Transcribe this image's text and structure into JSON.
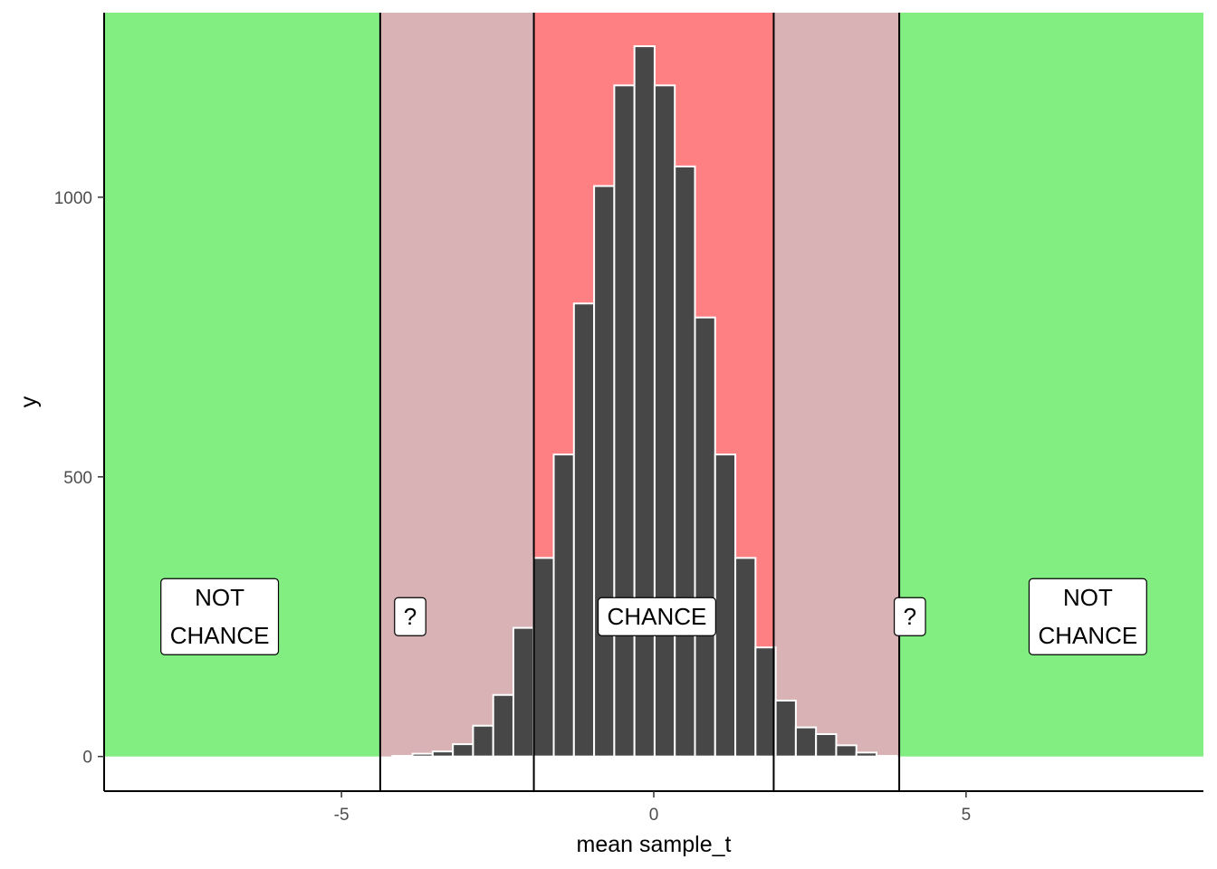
{
  "chart_data": {
    "type": "bar",
    "xlabel": "mean sample_t",
    "ylabel": "y",
    "xlim": [
      -8.8,
      8.8
    ],
    "ylim": [
      -62,
      1330
    ],
    "x_ticks": [
      -5,
      0,
      5
    ],
    "x_tick_labels": [
      "-5",
      "0",
      "5"
    ],
    "y_ticks": [
      0,
      500,
      1000
    ],
    "y_tick_labels": [
      "0",
      "500",
      "1000"
    ],
    "grid": false,
    "legend": "none",
    "regions": [
      {
        "from": -8.8,
        "to": -4.38,
        "color": "#82ee82"
      },
      {
        "from": -4.38,
        "to": -1.92,
        "color": "#d8b2b4"
      },
      {
        "from": -1.92,
        "to": 1.92,
        "color": "#ff8083"
      },
      {
        "from": 1.92,
        "to": 3.93,
        "color": "#d8b2b4"
      },
      {
        "from": 3.93,
        "to": 8.8,
        "color": "#82ee82"
      }
    ],
    "vlines": [
      -4.38,
      -1.92,
      1.92,
      3.93
    ],
    "annotations": [
      {
        "lines": [
          "NOT",
          "CHANCE"
        ],
        "x": -6.95,
        "y": 250
      },
      {
        "lines": [
          "?"
        ],
        "x": -3.9,
        "y": 250
      },
      {
        "lines": [
          "CHANCE"
        ],
        "x": 0.05,
        "y": 250
      },
      {
        "lines": [
          "?"
        ],
        "x": 4.1,
        "y": 250
      },
      {
        "lines": [
          "NOT",
          "CHANCE"
        ],
        "x": 6.95,
        "y": 250
      }
    ],
    "bar_width": 0.323,
    "bar_color": "#474747",
    "bar_outline": "#ffffff",
    "bars": [
      {
        "x": -7.9,
        "y": 0
      },
      {
        "x": -7.577,
        "y": 0
      },
      {
        "x": -7.254,
        "y": 0
      },
      {
        "x": -6.931,
        "y": 0
      },
      {
        "x": -6.608,
        "y": 0
      },
      {
        "x": -6.285,
        "y": 0
      },
      {
        "x": -5.962,
        "y": 0
      },
      {
        "x": -5.639,
        "y": 0
      },
      {
        "x": -5.316,
        "y": 0
      },
      {
        "x": -4.993,
        "y": 0
      },
      {
        "x": -4.67,
        "y": 0
      },
      {
        "x": -4.347,
        "y": 0
      },
      {
        "x": -4.024,
        "y": 1
      },
      {
        "x": -3.701,
        "y": 5
      },
      {
        "x": -3.378,
        "y": 9
      },
      {
        "x": -3.055,
        "y": 22
      },
      {
        "x": -2.732,
        "y": 55
      },
      {
        "x": -2.409,
        "y": 110
      },
      {
        "x": -2.086,
        "y": 230
      },
      {
        "x": -1.763,
        "y": 355
      },
      {
        "x": -1.44,
        "y": 540
      },
      {
        "x": -1.117,
        "y": 810
      },
      {
        "x": -0.794,
        "y": 1020
      },
      {
        "x": -0.471,
        "y": 1200
      },
      {
        "x": -0.148,
        "y": 1270
      },
      {
        "x": 0.175,
        "y": 1200
      },
      {
        "x": 0.498,
        "y": 1055
      },
      {
        "x": 0.821,
        "y": 785
      },
      {
        "x": 1.144,
        "y": 540
      },
      {
        "x": 1.467,
        "y": 355
      },
      {
        "x": 1.79,
        "y": 195
      },
      {
        "x": 2.113,
        "y": 100
      },
      {
        "x": 2.436,
        "y": 52
      },
      {
        "x": 2.759,
        "y": 40
      },
      {
        "x": 3.082,
        "y": 20
      },
      {
        "x": 3.405,
        "y": 7
      },
      {
        "x": 3.728,
        "y": 1
      },
      {
        "x": 4.051,
        "y": 0
      },
      {
        "x": 4.374,
        "y": 0
      },
      {
        "x": 4.697,
        "y": 0
      },
      {
        "x": 5.02,
        "y": 0
      },
      {
        "x": 5.343,
        "y": 0
      },
      {
        "x": 5.666,
        "y": 0
      },
      {
        "x": 5.989,
        "y": 0
      },
      {
        "x": 6.312,
        "y": 0
      },
      {
        "x": 6.635,
        "y": 0
      },
      {
        "x": 6.958,
        "y": 0
      },
      {
        "x": 7.281,
        "y": 0
      },
      {
        "x": 7.604,
        "y": 0
      }
    ]
  }
}
